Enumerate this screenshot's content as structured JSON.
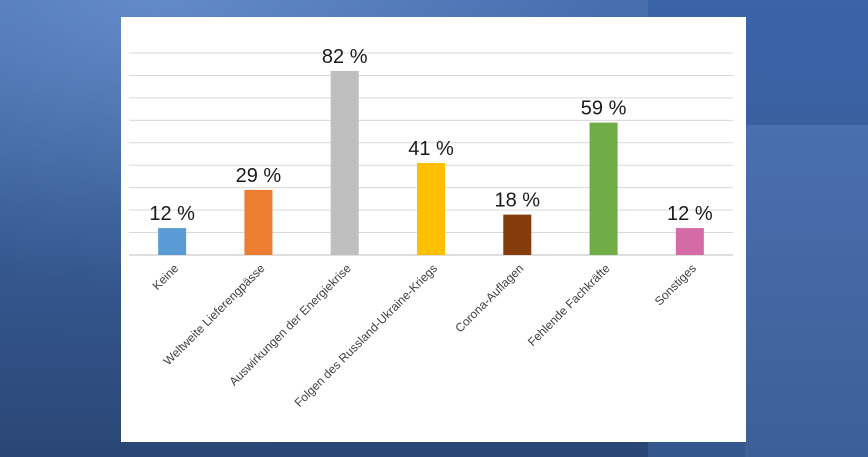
{
  "chart_data": {
    "type": "bar",
    "categories": [
      "Keine",
      "Weltweite Lieferengpässe",
      "Auswirkungen der Energiekrise",
      "Folgen des Russland-Ukraine-Kriegs",
      "Corona-Auflagen",
      "Fehlende Fachkräfte",
      "Sonstiges"
    ],
    "values": [
      12,
      29,
      82,
      41,
      18,
      59,
      12
    ],
    "data_labels": [
      "12 %",
      "29 %",
      "82 %",
      "41 %",
      "18 %",
      "59 %",
      "12 %"
    ],
    "colors": [
      "#5b9bd5",
      "#ed7d31",
      "#bfbfbf",
      "#ffc000",
      "#843c0c",
      "#70ad47",
      "#d56ba6"
    ],
    "ylim": [
      0,
      90
    ],
    "grid": true,
    "title": "",
    "xlabel": "",
    "ylabel": ""
  }
}
